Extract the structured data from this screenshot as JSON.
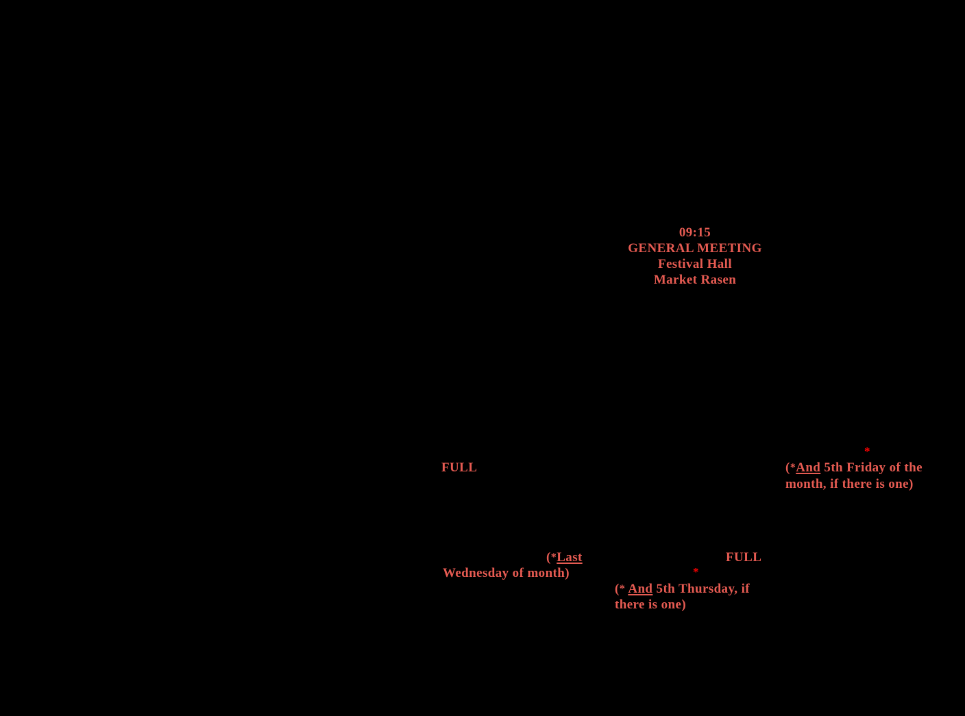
{
  "page": {
    "background_color": "#000000",
    "text_color": "#E65B52",
    "marker_color": "#FF0000"
  },
  "general_meeting": {
    "time": "09:15",
    "title": "GENERAL MEETING",
    "venue": "Festival Hall",
    "location": "Market Rasen"
  },
  "friday_slot": {
    "full_label": "FULL",
    "footnote_marker": "*",
    "note": {
      "prefix": "(",
      "superscript": "*",
      "gap": "",
      "underlined_word": "And",
      "line1_rest": " 5th Friday of the",
      "line2": "month, if there is one)"
    }
  },
  "wednesday_slot": {
    "note": {
      "prefix": "(",
      "superscript": "*",
      "underlined_word": "Last",
      "line2": "Wednesday of month)"
    }
  },
  "thursday_slot": {
    "full_label": "FULL",
    "footnote_marker": "*",
    "note": {
      "prefix": "(",
      "superscript": "*",
      "gap": " ",
      "underlined_word": "And",
      "line1_rest": " 5th Thursday, if",
      "line2": "there is one)"
    }
  }
}
